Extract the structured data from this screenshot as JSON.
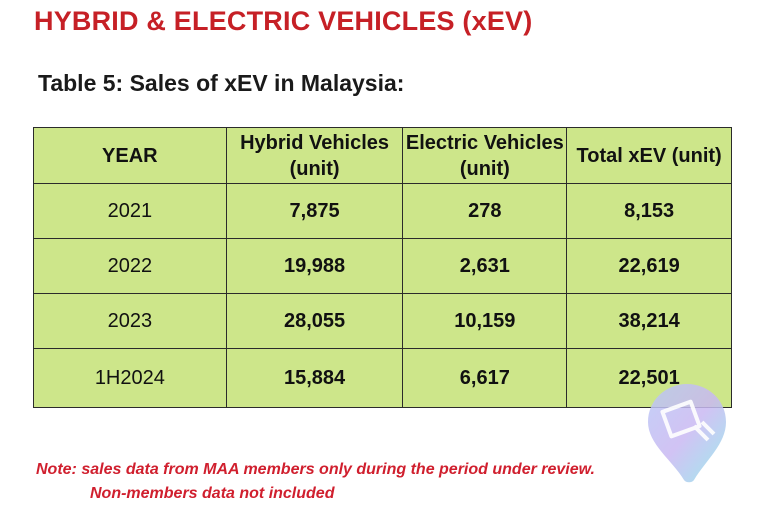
{
  "heading": "HYBRID & ELECTRIC VEHICLES (xEV)",
  "table_title": "Table 5: Sales of xEV in Malaysia:",
  "table": {
    "headers": [
      "YEAR",
      "Hybrid Vehicles (unit)",
      "Electric Vehicles (unit)",
      "Total xEV (unit)"
    ],
    "rows": [
      [
        "2021",
        "7,875",
        "278",
        "8,153"
      ],
      [
        "2022",
        "19,988",
        "2,631",
        "22,619"
      ],
      [
        "2023",
        "28,055",
        "10,159",
        "38,214"
      ],
      [
        "1H2024",
        "15,884",
        "6,617",
        "22,501"
      ]
    ]
  },
  "note": {
    "line1": "Note: sales data from MAA members only during the period under review.",
    "line2": "Non-members data not included"
  },
  "colors": {
    "heading": "#c62026",
    "table_fill": "#cde68a",
    "note": "#d01f2e"
  }
}
